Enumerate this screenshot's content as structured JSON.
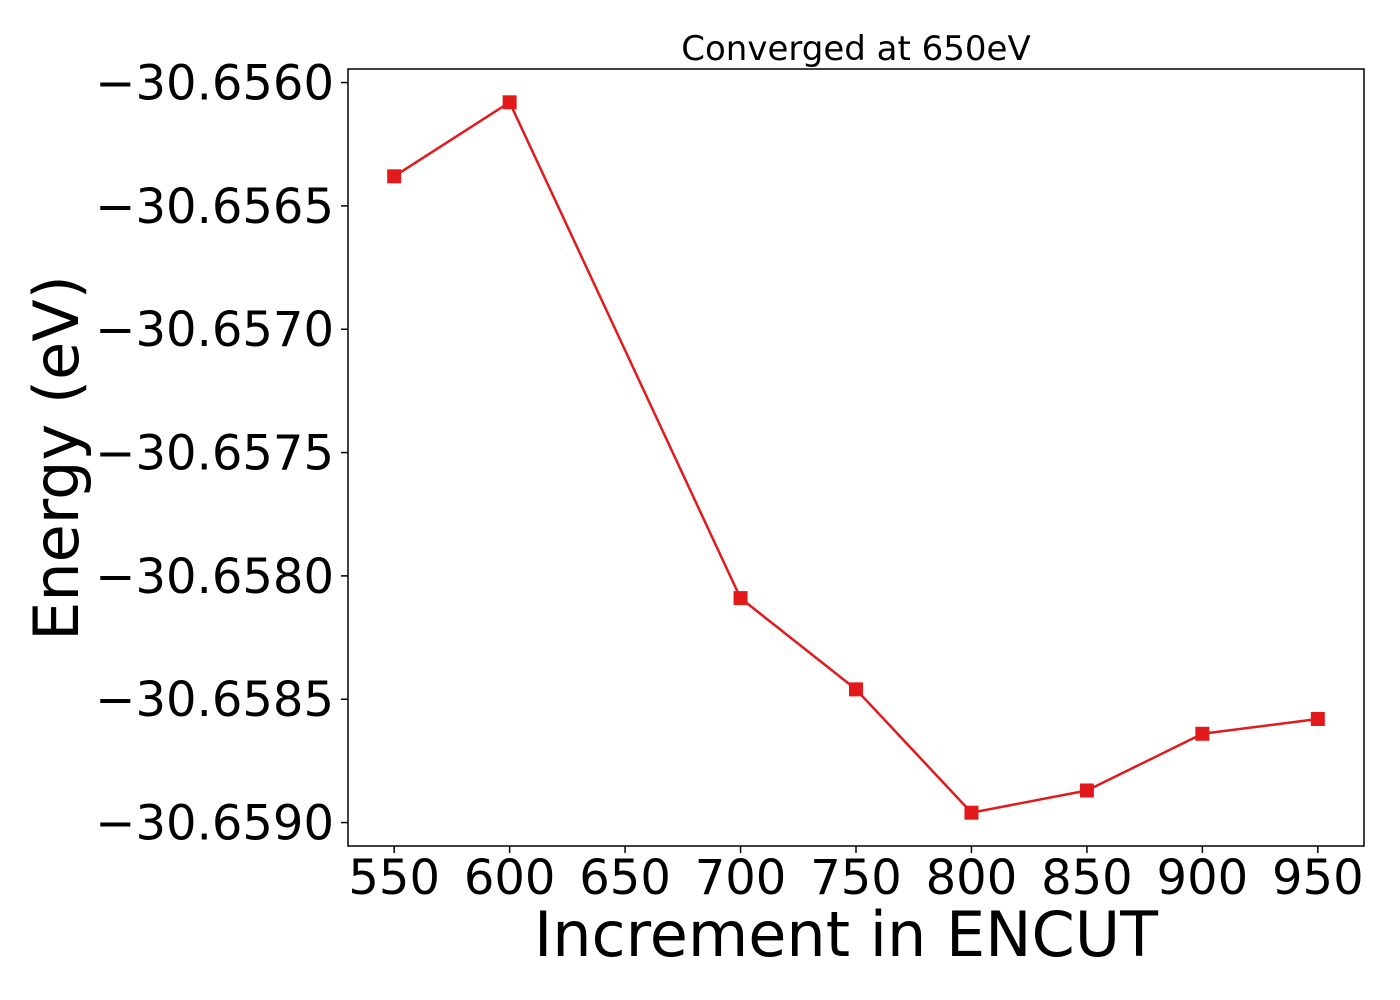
{
  "chart_data": {
    "type": "line",
    "title": "Converged at 650eV",
    "xlabel": "Increment in ENCUT",
    "ylabel": "Energy (eV)",
    "x": [
      550,
      600,
      700,
      750,
      800,
      850,
      900,
      950
    ],
    "series": [
      {
        "values": [
          -30.65638,
          -30.65608,
          -30.65809,
          -30.65846,
          -30.65896,
          -30.65887,
          -30.65864,
          -30.65858
        ],
        "color": "#e31a1c",
        "marker": "square"
      }
    ],
    "xlim": [
      530,
      970
    ],
    "ylim": [
      -30.659095,
      -30.655945
    ],
    "xticks": [
      550,
      600,
      650,
      700,
      750,
      800,
      850,
      900,
      950
    ],
    "xtick_labels": [
      "550",
      "600",
      "650",
      "700",
      "750",
      "800",
      "850",
      "900",
      "950"
    ],
    "yticks": [
      -30.656,
      -30.6565,
      -30.657,
      -30.6575,
      -30.658,
      -30.6585,
      -30.659
    ],
    "ytick_labels": [
      "−30.6560",
      "−30.6565",
      "−30.6570",
      "−30.6575",
      "−30.6580",
      "−30.6585",
      "−30.6590"
    ],
    "grid": false,
    "legend": "none"
  }
}
